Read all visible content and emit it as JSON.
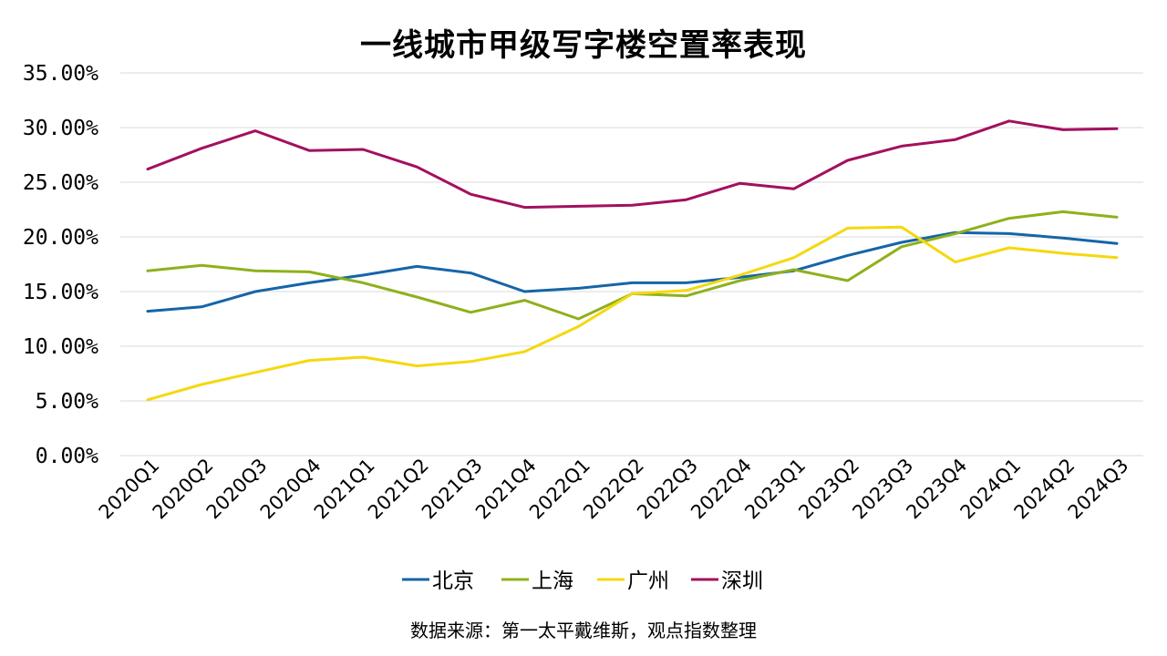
{
  "chart_data": {
    "type": "line",
    "title": "一线城市甲级写字楼空置率表现",
    "xlabel": "",
    "ylabel": "",
    "categories": [
      "2020Q1",
      "2020Q2",
      "2020Q3",
      "2020Q4",
      "2021Q1",
      "2021Q2",
      "2021Q3",
      "2021Q4",
      "2022Q1",
      "2022Q2",
      "2022Q3",
      "2022Q4",
      "2023Q1",
      "2023Q2",
      "2023Q3",
      "2023Q4",
      "2024Q1",
      "2024Q2",
      "2024Q3"
    ],
    "yticks": [
      0,
      5,
      10,
      15,
      20,
      25,
      30,
      35
    ],
    "ytick_labels": [
      "0.00%",
      "5.00%",
      "10.00%",
      "15.00%",
      "20.00%",
      "25.00%",
      "30.00%",
      "35.00%"
    ],
    "ylim": [
      0,
      35
    ],
    "grid": "horizontal",
    "legend_position": "bottom",
    "series": [
      {
        "name": "北京",
        "color": "#1565a8",
        "values": [
          13.2,
          13.6,
          15.0,
          15.8,
          16.5,
          17.3,
          16.7,
          15.0,
          15.3,
          15.8,
          15.8,
          16.3,
          16.9,
          18.3,
          19.5,
          20.4,
          20.3,
          19.9,
          19.4
        ]
      },
      {
        "name": "上海",
        "color": "#8fb01c",
        "values": [
          16.9,
          17.4,
          16.9,
          16.8,
          15.8,
          14.5,
          13.1,
          14.2,
          12.5,
          14.8,
          14.6,
          16.0,
          17.0,
          16.0,
          19.1,
          20.3,
          21.7,
          22.3,
          21.8
        ]
      },
      {
        "name": "广州",
        "color": "#f5d80f",
        "values": [
          5.1,
          6.5,
          7.6,
          8.7,
          9.0,
          8.2,
          8.6,
          9.5,
          11.8,
          14.8,
          15.1,
          16.5,
          18.1,
          20.8,
          20.9,
          17.7,
          19.0,
          18.5,
          18.1
        ]
      },
      {
        "name": "深圳",
        "color": "#a3105f",
        "values": [
          26.2,
          28.1,
          29.7,
          27.9,
          28.0,
          26.4,
          23.9,
          22.7,
          22.8,
          22.9,
          23.4,
          24.9,
          24.4,
          27.0,
          28.3,
          28.9,
          30.6,
          29.8,
          29.9
        ]
      }
    ]
  },
  "source_note": "数据来源：第一太平戴维斯，观点指数整理"
}
